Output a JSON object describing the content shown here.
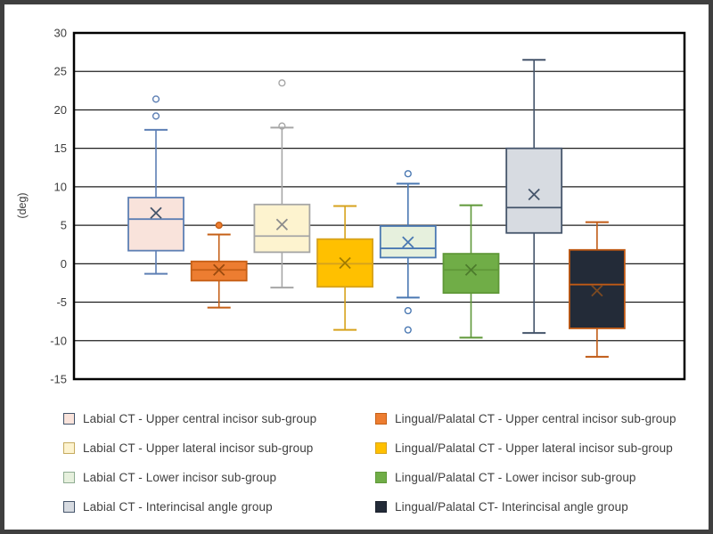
{
  "chart_data": {
    "type": "box",
    "title": "",
    "xlabel": "",
    "ylabel": "(deg)",
    "ylim": [
      -15,
      30
    ],
    "ytick_step": 5,
    "yticks": [
      30,
      25,
      20,
      15,
      10,
      5,
      0,
      -5,
      -10,
      -15
    ],
    "grid": true,
    "legend_position": "bottom, two columns",
    "series": [
      {
        "name": "Labial CT - Upper central incisor sub-group",
        "fill": "#f9e3db",
        "stroke": "#5d7fb4",
        "mark": "#44546a",
        "legend_stroke": "#44546a",
        "whisker_low": -1.3,
        "q1": 1.7,
        "median": 5.8,
        "q3": 8.6,
        "whisker_high": 17.4,
        "mean": 6.6,
        "outliers": [
          21.4,
          19.2
        ],
        "outlier_filled": false
      },
      {
        "name": "Lingual/Palatal CT - Upper central incisor sub-group",
        "fill": "#ed7d31",
        "stroke": "#c55f16",
        "mark": "#9a4a0f",
        "legend_stroke": "#c55f16",
        "whisker_low": -5.7,
        "q1": -2.2,
        "median": -0.8,
        "q3": 0.3,
        "whisker_high": 3.8,
        "mean": -0.8,
        "outliers": [
          5.0
        ],
        "outlier_filled": true
      },
      {
        "name": "Labial CT - Upper lateral incisor sub-group",
        "fill": "#fdf3cf",
        "stroke": "#a6a6a6",
        "mark": "#8c8c8c",
        "legend_stroke": "#c6ab5f",
        "whisker_low": -3.1,
        "q1": 1.5,
        "median": 3.6,
        "q3": 7.7,
        "whisker_high": 17.7,
        "mean": 5.1,
        "outliers": [
          23.5,
          17.9
        ],
        "outlier_filled": false
      },
      {
        "name": "Lingual/Palatal CT - Upper lateral incisor sub-group",
        "fill": "#ffc000",
        "stroke": "#d6a21c",
        "mark": "#a27c00",
        "legend_stroke": "#d6a21c",
        "whisker_low": -8.6,
        "q1": -3.0,
        "median": 0.0,
        "q3": 3.2,
        "whisker_high": 7.5,
        "mean": 0.1,
        "outliers": [],
        "outlier_filled": false
      },
      {
        "name": "Labial CT - Lower incisor sub-group",
        "fill": "#e6f0dd",
        "stroke": "#4a78b2",
        "mark": "#4a78b2",
        "legend_stroke": "#8fac92",
        "whisker_low": -4.4,
        "q1": 0.8,
        "median": 2.0,
        "q3": 4.9,
        "whisker_high": 10.4,
        "mean": 2.8,
        "outliers": [
          11.7,
          -6.1,
          -8.6
        ],
        "outlier_filled": false
      },
      {
        "name": "Lingual/Palatal CT - Lower incisor sub-group",
        "fill": "#70ad47",
        "stroke": "#5f9838",
        "mark": "#4c7b2c",
        "legend_stroke": "#5f9838",
        "whisker_low": -9.6,
        "q1": -3.8,
        "median": -0.8,
        "q3": 1.3,
        "whisker_high": 7.6,
        "mean": -0.8,
        "outliers": [],
        "outlier_filled": false
      },
      {
        "name": "Labial CT - Interincisal angle group",
        "fill": "#d7dbe1",
        "stroke": "#44546a",
        "mark": "#44546a",
        "legend_stroke": "#44546a",
        "whisker_low": -9.0,
        "q1": 4.0,
        "median": 7.3,
        "q3": 15.0,
        "whisker_high": 26.5,
        "mean": 9.0,
        "outliers": [],
        "outlier_filled": false
      },
      {
        "name": "Lingual/Palatal CT- Interincisal angle group",
        "fill": "#232b38",
        "stroke": "#c05a15",
        "mark": "#7c4a22",
        "legend_stroke": "#1a202b",
        "whisker_low": -12.1,
        "q1": -8.4,
        "median": -2.7,
        "q3": 1.8,
        "whisker_high": 5.4,
        "mean": -3.5,
        "outliers": [],
        "outlier_filled": false
      }
    ],
    "legend_columns": [
      [
        0,
        2,
        4,
        6
      ],
      [
        1,
        3,
        5,
        7
      ]
    ]
  }
}
